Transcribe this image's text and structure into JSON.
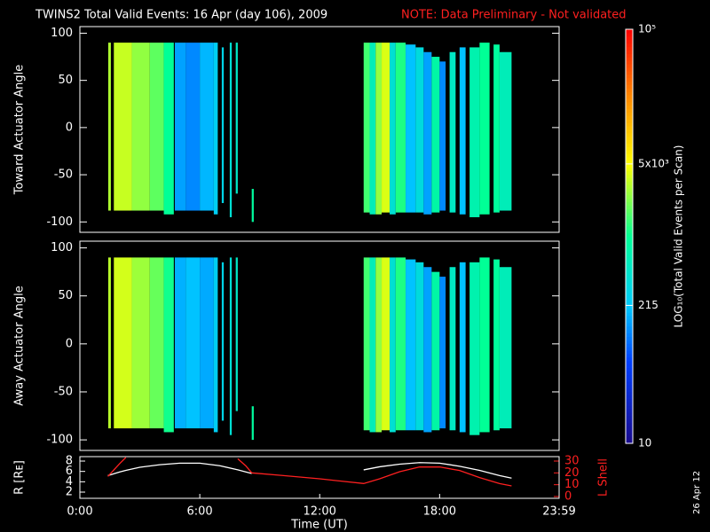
{
  "title": "TWINS2 Total Valid Events: 16 Apr (day 106), 2009",
  "note": "NOTE: Data Preliminary - Not validated",
  "date_stamp": "26 Apr 12",
  "colorbar": {
    "scale": "log",
    "lim": [
      10,
      100000
    ],
    "ticks": [
      10,
      215,
      {
        "value": 5000,
        "label": "5x10³"
      },
      {
        "value": 100000,
        "label": "10⁵"
      }
    ],
    "label": "LOG₁₀(Total Valid Events per Scan)"
  },
  "chart_data": [
    {
      "type": "heatmap",
      "ylabel": "Toward Actuator Angle",
      "xlim": [
        0,
        23.98
      ],
      "ylim": [
        -111,
        107
      ],
      "yticks": [
        -100,
        -50,
        0,
        50,
        100
      ],
      "columns": [
        {
          "t0": 1.42,
          "t1": 1.55,
          "a0": -88,
          "a1": 90,
          "value": 3000
        },
        {
          "t0": 1.7,
          "t1": 2.6,
          "a0": -88,
          "a1": 90,
          "value": 3500
        },
        {
          "t0": 2.6,
          "t1": 3.5,
          "a0": -88,
          "a1": 90,
          "value": 2500
        },
        {
          "t0": 3.5,
          "t1": 4.2,
          "a0": -88,
          "a1": 90,
          "value": 1800
        },
        {
          "t0": 4.2,
          "t1": 4.7,
          "a0": -92,
          "a1": 90,
          "value": 1000
        },
        {
          "t0": 4.75,
          "t1": 5.3,
          "a0": -88,
          "a1": 90,
          "value": 150
        },
        {
          "t0": 5.3,
          "t1": 6.0,
          "a0": -88,
          "a1": 90,
          "value": 120
        },
        {
          "t0": 6.0,
          "t1": 6.7,
          "a0": -88,
          "a1": 90,
          "value": 180
        },
        {
          "t0": 6.7,
          "t1": 6.9,
          "a0": -92,
          "a1": 90,
          "value": 250
        },
        {
          "t0": 7.1,
          "t1": 7.2,
          "a0": -80,
          "a1": 85,
          "value": 300
        },
        {
          "t0": 7.5,
          "t1": 7.6,
          "a0": -95,
          "a1": 90,
          "value": 400
        },
        {
          "t0": 7.8,
          "t1": 7.9,
          "a0": -70,
          "a1": 90,
          "value": 500
        },
        {
          "t0": 8.6,
          "t1": 8.7,
          "a0": -100,
          "a1": -65,
          "value": 900
        },
        {
          "t0": 14.2,
          "t1": 14.5,
          "a0": -90,
          "a1": 90,
          "value": 1500
        },
        {
          "t0": 14.5,
          "t1": 14.8,
          "a0": -92,
          "a1": 90,
          "value": 600
        },
        {
          "t0": 14.8,
          "t1": 15.1,
          "a0": -92,
          "a1": 90,
          "value": 2500
        },
        {
          "t0": 15.1,
          "t1": 15.5,
          "a0": -90,
          "a1": 90,
          "value": 4000
        },
        {
          "t0": 15.5,
          "t1": 15.8,
          "a0": -92,
          "a1": 90,
          "value": 400
        },
        {
          "t0": 15.8,
          "t1": 16.3,
          "a0": -90,
          "a1": 90,
          "value": 1200
        },
        {
          "t0": 16.3,
          "t1": 16.8,
          "a0": -90,
          "a1": 88,
          "value": 200
        },
        {
          "t0": 16.8,
          "t1": 17.2,
          "a0": -90,
          "a1": 85,
          "value": 350
        },
        {
          "t0": 17.2,
          "t1": 17.6,
          "a0": -92,
          "a1": 80,
          "value": 150
        },
        {
          "t0": 17.6,
          "t1": 18.0,
          "a0": -90,
          "a1": 75,
          "value": 800
        },
        {
          "t0": 18.0,
          "t1": 18.3,
          "a0": -88,
          "a1": 70,
          "value": 120
        },
        {
          "t0": 18.5,
          "t1": 18.8,
          "a0": -90,
          "a1": 80,
          "value": 500
        },
        {
          "t0": 19.0,
          "t1": 19.3,
          "a0": -92,
          "a1": 85,
          "value": 200
        },
        {
          "t0": 19.5,
          "t1": 20.0,
          "a0": -95,
          "a1": 85,
          "value": 700
        },
        {
          "t0": 20.0,
          "t1": 20.5,
          "a0": -92,
          "a1": 90,
          "value": 1000
        },
        {
          "t0": 20.7,
          "t1": 21.0,
          "a0": -90,
          "a1": 88,
          "value": 900
        },
        {
          "t0": 21.0,
          "t1": 21.6,
          "a0": -88,
          "a1": 80,
          "value": 600
        }
      ]
    },
    {
      "type": "heatmap",
      "ylabel": "Away Actuator Angle",
      "xlim": [
        0,
        23.98
      ],
      "ylim": [
        -111,
        107
      ],
      "yticks": [
        -100,
        -50,
        0,
        50,
        100
      ],
      "columns": [
        {
          "t0": 1.42,
          "t1": 1.55,
          "a0": -88,
          "a1": 90,
          "value": 3200
        },
        {
          "t0": 1.7,
          "t1": 2.6,
          "a0": -88,
          "a1": 90,
          "value": 3800
        },
        {
          "t0": 2.6,
          "t1": 3.5,
          "a0": -88,
          "a1": 90,
          "value": 2700
        },
        {
          "t0": 3.5,
          "t1": 4.2,
          "a0": -88,
          "a1": 90,
          "value": 1900
        },
        {
          "t0": 4.2,
          "t1": 4.7,
          "a0": -92,
          "a1": 90,
          "value": 1100
        },
        {
          "t0": 4.75,
          "t1": 5.3,
          "a0": -88,
          "a1": 90,
          "value": 170
        },
        {
          "t0": 5.3,
          "t1": 6.0,
          "a0": -88,
          "a1": 90,
          "value": 200
        },
        {
          "t0": 6.0,
          "t1": 6.7,
          "a0": -88,
          "a1": 90,
          "value": 160
        },
        {
          "t0": 6.7,
          "t1": 6.9,
          "a0": -92,
          "a1": 90,
          "value": 250
        },
        {
          "t0": 7.1,
          "t1": 7.2,
          "a0": -80,
          "a1": 85,
          "value": 300
        },
        {
          "t0": 7.5,
          "t1": 7.6,
          "a0": -95,
          "a1": 90,
          "value": 400
        },
        {
          "t0": 7.8,
          "t1": 7.9,
          "a0": -70,
          "a1": 90,
          "value": 500
        },
        {
          "t0": 8.6,
          "t1": 8.7,
          "a0": -100,
          "a1": -65,
          "value": 900
        },
        {
          "t0": 14.2,
          "t1": 14.5,
          "a0": -90,
          "a1": 90,
          "value": 1500
        },
        {
          "t0": 14.5,
          "t1": 14.8,
          "a0": -92,
          "a1": 90,
          "value": 600
        },
        {
          "t0": 14.8,
          "t1": 15.1,
          "a0": -92,
          "a1": 90,
          "value": 2500
        },
        {
          "t0": 15.1,
          "t1": 15.5,
          "a0": -90,
          "a1": 90,
          "value": 4000
        },
        {
          "t0": 15.5,
          "t1": 15.8,
          "a0": -92,
          "a1": 90,
          "value": 400
        },
        {
          "t0": 15.8,
          "t1": 16.3,
          "a0": -90,
          "a1": 90,
          "value": 1200
        },
        {
          "t0": 16.3,
          "t1": 16.8,
          "a0": -90,
          "a1": 88,
          "value": 200
        },
        {
          "t0": 16.8,
          "t1": 17.2,
          "a0": -90,
          "a1": 85,
          "value": 350
        },
        {
          "t0": 17.2,
          "t1": 17.6,
          "a0": -92,
          "a1": 80,
          "value": 150
        },
        {
          "t0": 17.6,
          "t1": 18.0,
          "a0": -90,
          "a1": 75,
          "value": 800
        },
        {
          "t0": 18.0,
          "t1": 18.3,
          "a0": -88,
          "a1": 70,
          "value": 120
        },
        {
          "t0": 18.5,
          "t1": 18.8,
          "a0": -90,
          "a1": 80,
          "value": 500
        },
        {
          "t0": 19.0,
          "t1": 19.3,
          "a0": -92,
          "a1": 85,
          "value": 200
        },
        {
          "t0": 19.5,
          "t1": 20.0,
          "a0": -95,
          "a1": 85,
          "value": 700
        },
        {
          "t0": 20.0,
          "t1": 20.5,
          "a0": -92,
          "a1": 90,
          "value": 1000
        },
        {
          "t0": 20.7,
          "t1": 21.0,
          "a0": -90,
          "a1": 88,
          "value": 900
        },
        {
          "t0": 21.0,
          "t1": 21.6,
          "a0": -88,
          "a1": 80,
          "value": 600
        }
      ]
    },
    {
      "type": "line",
      "xlabel": "Time (UT)",
      "ylabel": "R [Rᴇ]",
      "y2label": "L Shell",
      "xlim": [
        0,
        23.98
      ],
      "xticks": [
        {
          "value": 0,
          "label": "0:00"
        },
        {
          "value": 6,
          "label": "6:00"
        },
        {
          "value": 12,
          "label": "12:00"
        },
        {
          "value": 18,
          "label": "18:00"
        },
        {
          "value": 23.98,
          "label": "23:59"
        }
      ],
      "ylim": [
        0.8,
        8.86
      ],
      "yticks": [
        2,
        4,
        6,
        8
      ],
      "y2lim": [
        -1.5,
        33.75
      ],
      "y2ticks": [
        0,
        10,
        20,
        30
      ],
      "x": [
        1.4,
        2,
        2.3,
        3,
        4,
        5,
        6,
        7,
        7.9,
        8.3,
        8.6,
        10,
        12,
        14.2,
        15,
        16,
        17,
        18,
        19,
        20,
        21,
        21.6
      ],
      "series": [
        {
          "name": "R",
          "color": "#ffffff",
          "values": [
            5.2,
            5.9,
            6.2,
            6.8,
            7.3,
            7.6,
            7.6,
            7.1,
            6.3,
            5.9,
            5.6,
            null,
            null,
            6.3,
            6.9,
            7.4,
            7.7,
            7.6,
            7.0,
            6.2,
            5.2,
            4.7
          ]
        },
        {
          "name": "L Shell",
          "color": "#ff2020",
          "axis": "y2",
          "values": [
            17,
            28,
            33,
            null,
            null,
            null,
            null,
            null,
            32,
            26,
            20,
            18,
            15,
            11,
            15,
            21,
            25,
            25,
            22,
            16,
            11,
            9
          ]
        }
      ]
    }
  ]
}
